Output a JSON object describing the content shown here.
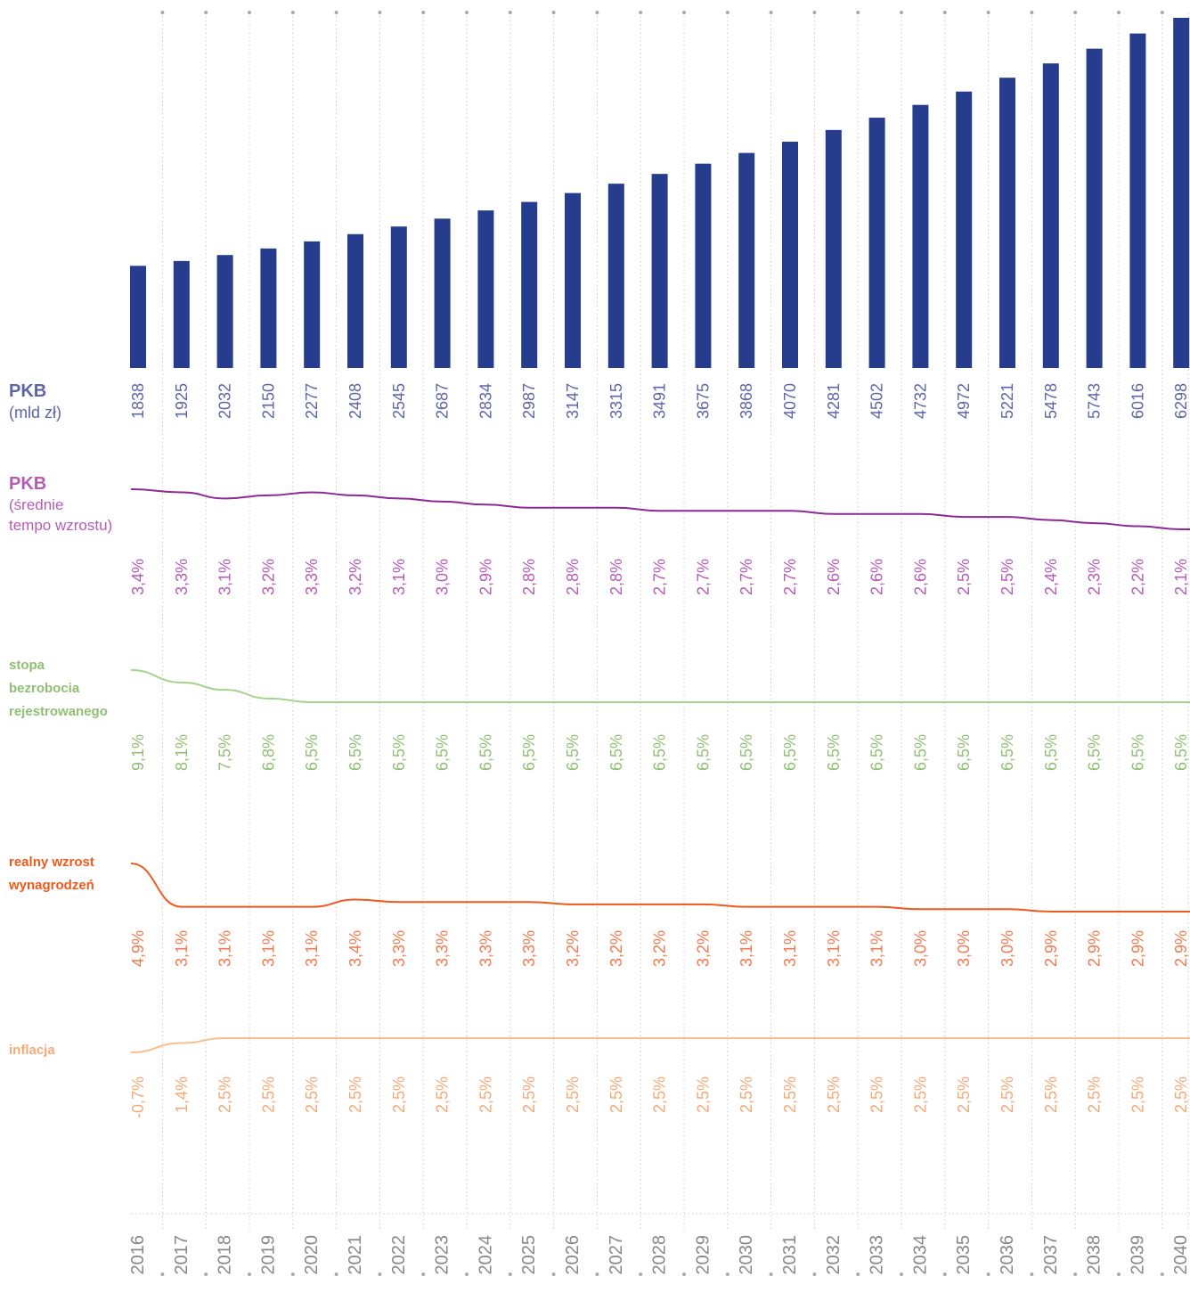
{
  "chart_data": {
    "type": "bar",
    "years": [
      "2016",
      "2017",
      "2018",
      "2019",
      "2020",
      "2021",
      "2022",
      "2023",
      "2024",
      "2025",
      "2026",
      "2027",
      "2028",
      "2029",
      "2030",
      "2031",
      "2032",
      "2033",
      "2034",
      "2035",
      "2036",
      "2037",
      "2038",
      "2039",
      "2040"
    ],
    "series": [
      {
        "key": "pkb",
        "chart_type": "bar",
        "values": [
          1838,
          1925,
          2032,
          2150,
          2277,
          2408,
          2545,
          2687,
          2834,
          2987,
          3147,
          3315,
          3491,
          3675,
          3868,
          4070,
          4281,
          4502,
          4732,
          4972,
          5221,
          5478,
          5743,
          6016,
          6298
        ],
        "value_labels": [
          "1838",
          "1925",
          "2032",
          "2150",
          "2277",
          "2408",
          "2545",
          "2687",
          "2834",
          "2987",
          "3147",
          "3315",
          "3491",
          "3675",
          "3868",
          "4070",
          "4281",
          "4502",
          "4732",
          "4972",
          "5221",
          "5478",
          "5743",
          "6016",
          "6298"
        ]
      },
      {
        "key": "pkb_growth",
        "chart_type": "line",
        "values": [
          3.4,
          3.3,
          3.1,
          3.2,
          3.3,
          3.2,
          3.1,
          3.0,
          2.9,
          2.8,
          2.8,
          2.8,
          2.7,
          2.7,
          2.7,
          2.7,
          2.6,
          2.6,
          2.6,
          2.5,
          2.5,
          2.4,
          2.3,
          2.2,
          2.1
        ],
        "value_labels": [
          "3,4%",
          "3,3%",
          "3,1%",
          "3,2%",
          "3,3%",
          "3,2%",
          "3,1%",
          "3,0%",
          "2,9%",
          "2,8%",
          "2,8%",
          "2,8%",
          "2,7%",
          "2,7%",
          "2,7%",
          "2,7%",
          "2,6%",
          "2,6%",
          "2,6%",
          "2,5%",
          "2,5%",
          "2,4%",
          "2,3%",
          "2,2%",
          "2,1%"
        ]
      },
      {
        "key": "unemployment",
        "chart_type": "line",
        "values": [
          9.1,
          8.1,
          7.5,
          6.8,
          6.5,
          6.5,
          6.5,
          6.5,
          6.5,
          6.5,
          6.5,
          6.5,
          6.5,
          6.5,
          6.5,
          6.5,
          6.5,
          6.5,
          6.5,
          6.5,
          6.5,
          6.5,
          6.5,
          6.5,
          6.5
        ],
        "value_labels": [
          "9,1%",
          "8,1%",
          "7,5%",
          "6,8%",
          "6,5%",
          "6,5%",
          "6,5%",
          "6,5%",
          "6,5%",
          "6,5%",
          "6,5%",
          "6,5%",
          "6,5%",
          "6,5%",
          "6,5%",
          "6,5%",
          "6,5%",
          "6,5%",
          "6,5%",
          "6,5%",
          "6,5%",
          "6,5%",
          "6,5%",
          "6,5%",
          "6,5%"
        ]
      },
      {
        "key": "wages",
        "chart_type": "line",
        "values": [
          4.9,
          3.1,
          3.1,
          3.1,
          3.1,
          3.4,
          3.3,
          3.3,
          3.3,
          3.3,
          3.2,
          3.2,
          3.2,
          3.2,
          3.1,
          3.1,
          3.1,
          3.1,
          3.0,
          3.0,
          3.0,
          2.9,
          2.9,
          2.9,
          2.9
        ],
        "value_labels": [
          "4,9%",
          "3,1%",
          "3,1%",
          "3,1%",
          "3,1%",
          "3,4%",
          "3,3%",
          "3,3%",
          "3,3%",
          "3,3%",
          "3,2%",
          "3,2%",
          "3,2%",
          "3,2%",
          "3,1%",
          "3,1%",
          "3,1%",
          "3,1%",
          "3,0%",
          "3,0%",
          "3,0%",
          "2,9%",
          "2,9%",
          "2,9%",
          "2,9%"
        ]
      },
      {
        "key": "inflation",
        "chart_type": "line",
        "values": [
          -0.7,
          1.4,
          2.5,
          2.5,
          2.5,
          2.5,
          2.5,
          2.5,
          2.5,
          2.5,
          2.5,
          2.5,
          2.5,
          2.5,
          2.5,
          2.5,
          2.5,
          2.5,
          2.5,
          2.5,
          2.5,
          2.5,
          2.5,
          2.5,
          2.5
        ],
        "value_labels": [
          "-0,7%",
          "1,4%",
          "2,5%",
          "2,5%",
          "2,5%",
          "2,5%",
          "2,5%",
          "2,5%",
          "2,5%",
          "2,5%",
          "2,5%",
          "2,5%",
          "2,5%",
          "2,5%",
          "2,5%",
          "2,5%",
          "2,5%",
          "2,5%",
          "2,5%",
          "2,5%",
          "2,5%",
          "2,5%",
          "2,5%",
          "2,5%",
          "2,5%"
        ]
      }
    ],
    "grid": true,
    "legend": "left"
  },
  "labels": {
    "pkb_title": "PKB",
    "pkb_unit": "(mld zł)",
    "growth_title": "PKB",
    "growth_sub1": "(średnie",
    "growth_sub2": "tempo wzrostu)",
    "unemp_1": "stopa",
    "unemp_2": "bezrobocia",
    "unemp_3": "rejestrowanego",
    "wages_1": "realny wzrost",
    "wages_2": "wynagrodzeń",
    "inflation": "inflacja"
  },
  "colors": {
    "bar": "#263c8d",
    "pkb_label": "#5d65a9",
    "growth_line": "#8c2a96",
    "growth_label": "#b55cb8",
    "unemp_line": "#a5d38c",
    "unemp_label": "#8fbf72",
    "wages_line": "#ef5a1c",
    "wages_label": "#f07a50",
    "inflation_line": "#f7bf8e",
    "inflation_label": "#f4a977",
    "year_label": "#888888",
    "grid": "#c9c9c9"
  }
}
